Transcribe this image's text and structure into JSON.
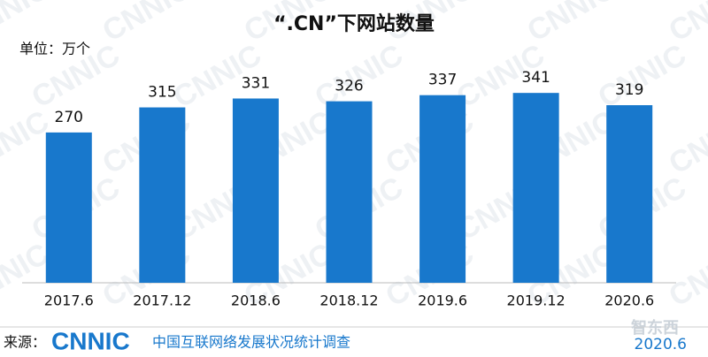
{
  "chart_data": {
    "type": "bar",
    "title": "“.CN”下网站数量",
    "unit_label": "单位：万个",
    "categories": [
      "2017.6",
      "2017.12",
      "2018.6",
      "2018.12",
      "2019.6",
      "2019.12",
      "2020.6"
    ],
    "values": [
      270,
      315,
      331,
      326,
      337,
      341,
      319
    ],
    "color": "#1878cc",
    "watermark": "CNNIC",
    "source_label": "来源：",
    "source_logo": "CNNIC",
    "source_name": "中国互联网络发展状况统计调查",
    "date": "2020.6",
    "corner_watermark": "智东西"
  }
}
